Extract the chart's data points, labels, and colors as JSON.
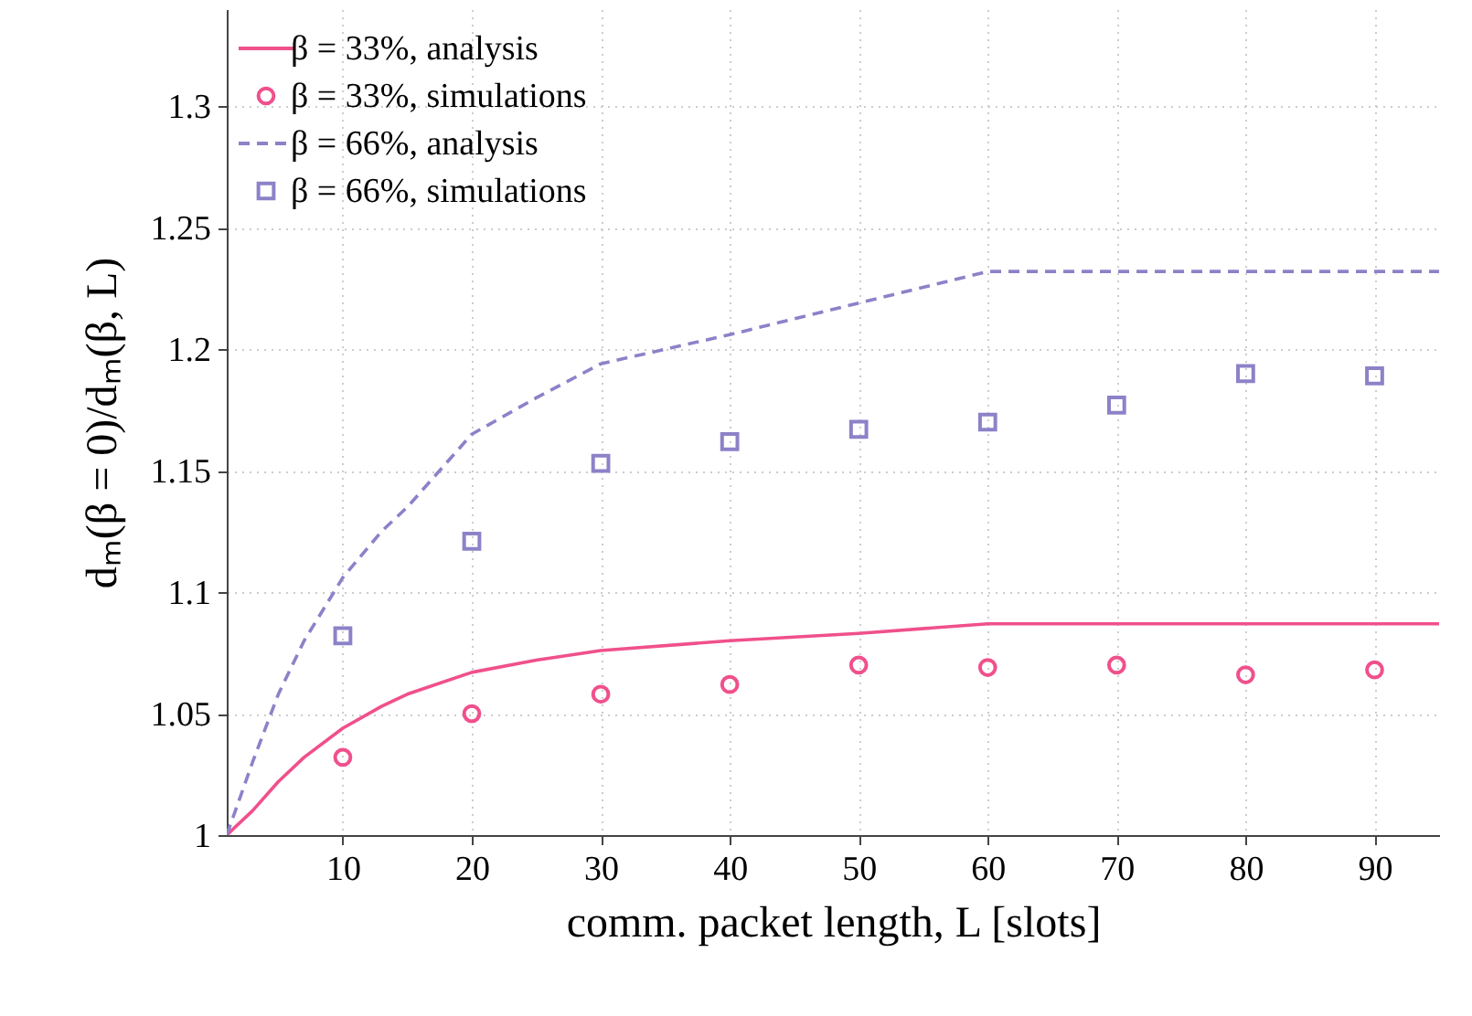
{
  "chart_data": {
    "type": "line",
    "xlabel": "comm. packet length, L [slots]",
    "ylabel": "dₘ(β = 0)/dₘ(β, L)",
    "xlim": [
      1,
      95
    ],
    "xticks": [
      10,
      20,
      30,
      40,
      50,
      60,
      70,
      80,
      90
    ],
    "ylim": [
      1,
      1.34
    ],
    "yticks": [
      1,
      1.05,
      1.1,
      1.15,
      1.2,
      1.25,
      1.3
    ],
    "grid": true,
    "legend": "top left",
    "series": [
      {
        "name": "β = 33%, analysis",
        "type": "line",
        "line_style": "solid",
        "color": "#f0508c",
        "x": [
          1,
          3,
          5,
          7,
          10,
          13,
          15,
          20,
          25,
          30,
          40,
          50,
          60,
          95
        ],
        "values": [
          1,
          1.01,
          1.022,
          1.032,
          1.044,
          1.053,
          1.058,
          1.067,
          1.072,
          1.076,
          1.08,
          1.083,
          1.087,
          1.087
        ]
      },
      {
        "name": "β = 33%, simulations",
        "type": "scatter",
        "marker": "circle",
        "color": "#f0508c",
        "x": [
          10,
          20,
          30,
          40,
          50,
          60,
          70,
          80,
          90
        ],
        "values": [
          1.032,
          1.05,
          1.058,
          1.062,
          1.07,
          1.069,
          1.07,
          1.066,
          1.068
        ]
      },
      {
        "name": "β = 66%, analysis",
        "type": "line",
        "line_style": "dashed",
        "color": "#8c82c8",
        "x": [
          1,
          3,
          5,
          7,
          10,
          13,
          15,
          20,
          25,
          30,
          40,
          50,
          60,
          95
        ],
        "values": [
          1,
          1.03,
          1.058,
          1.08,
          1.106,
          1.125,
          1.135,
          1.165,
          1.18,
          1.194,
          1.206,
          1.219,
          1.232,
          1.232
        ]
      },
      {
        "name": "β = 66%, simulations",
        "type": "scatter",
        "marker": "square",
        "color": "#8c82c8",
        "x": [
          10,
          20,
          30,
          40,
          50,
          60,
          70,
          80,
          90
        ],
        "values": [
          1.082,
          1.121,
          1.153,
          1.162,
          1.167,
          1.17,
          1.177,
          1.19,
          1.189
        ]
      }
    ]
  }
}
